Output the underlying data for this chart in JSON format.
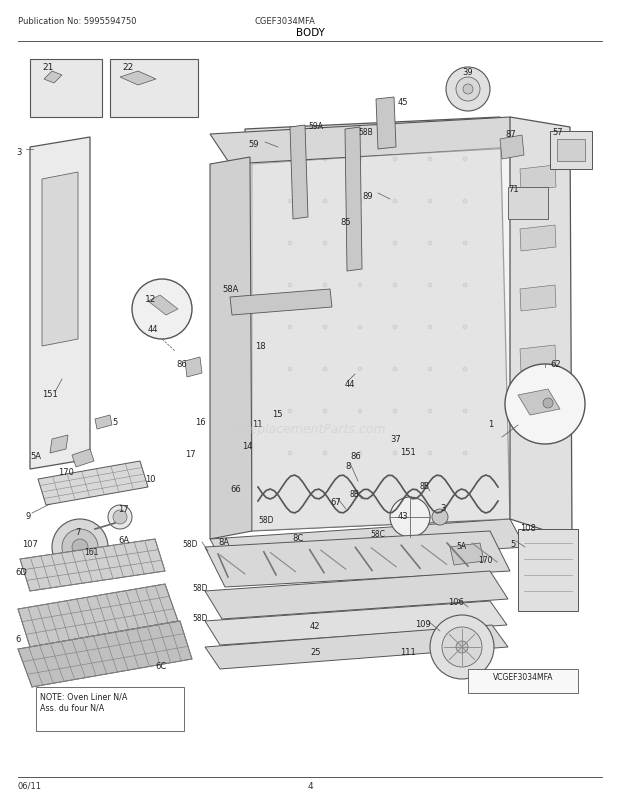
{
  "title": "BODY",
  "pub_no": "Publication No: 5995594750",
  "model": "CGEF3034MFA",
  "date": "06/11",
  "page": "4",
  "vcgef": "VCGEF3034MFA",
  "note": "NOTE: Oven Liner N/A\nAss. du four N/A",
  "bg_color": "#ffffff",
  "line_color": "#000000",
  "text_color": "#333333",
  "gray_light": "#e8e8e8",
  "gray_mid": "#c8c8c8",
  "gray_dark": "#aaaaaa",
  "fig_width": 6.2,
  "fig_height": 8.03,
  "dpi": 100,
  "watermark": "eReplacementParts.com"
}
